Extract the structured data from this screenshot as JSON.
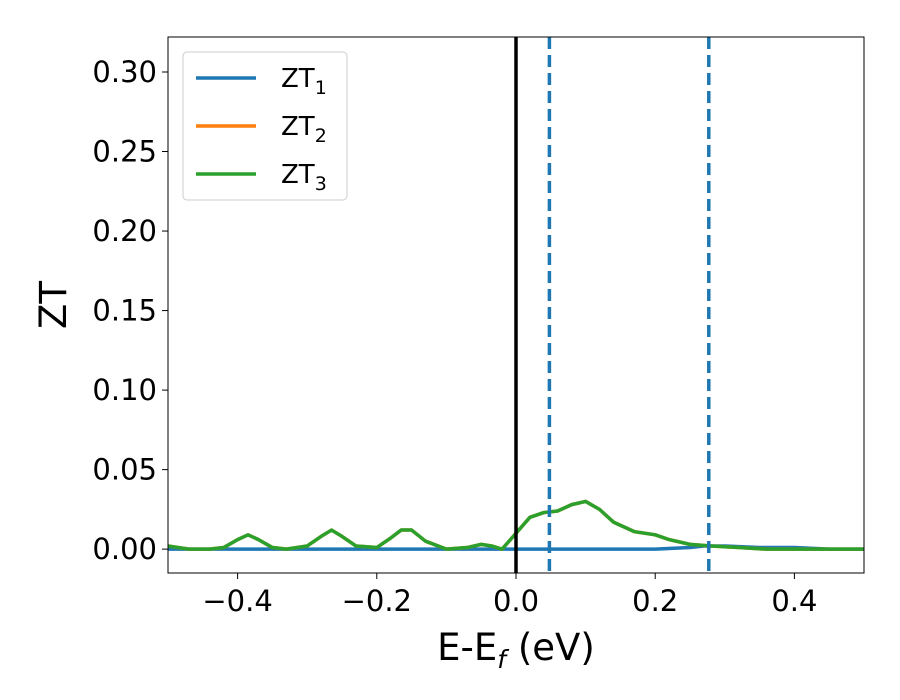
{
  "chart_data": {
    "type": "line",
    "xlabel_main": "E-E",
    "xlabel_sub": "f",
    "xlabel_unit": " (eV)",
    "ylabel": "ZT",
    "xlim": [
      -0.5,
      0.5
    ],
    "ylim": [
      -0.015,
      0.322
    ],
    "xticks": [
      -0.4,
      -0.2,
      0.0,
      0.2,
      0.4
    ],
    "xtick_labels": [
      "−0.4",
      "−0.2",
      "0.0",
      "0.2",
      "0.4"
    ],
    "yticks": [
      0.0,
      0.05,
      0.1,
      0.15,
      0.2,
      0.25,
      0.3
    ],
    "ytick_labels": [
      "0.00",
      "0.05",
      "0.10",
      "0.15",
      "0.20",
      "0.25",
      "0.30"
    ],
    "grid": false,
    "legend_position": "top-left",
    "series": [
      {
        "name": "ZT",
        "subscript": "1",
        "color": "#1f77b4",
        "x": [
          -0.5,
          -0.4,
          -0.3,
          -0.2,
          -0.1,
          0.0,
          0.05,
          0.1,
          0.15,
          0.2,
          0.25,
          0.27,
          0.3,
          0.35,
          0.4,
          0.45,
          0.5
        ],
        "y": [
          0.0,
          0.0,
          0.0,
          0.0,
          0.0,
          0.0,
          0.0,
          0.0,
          0.0,
          0.0,
          0.001,
          0.002,
          0.002,
          0.001,
          0.001,
          0.0,
          0.0
        ]
      },
      {
        "name": "ZT",
        "subscript": "2",
        "color": "#ff7f0e",
        "x": [
          -0.5,
          -0.47,
          -0.44,
          -0.42,
          -0.4,
          -0.385,
          -0.37,
          -0.35,
          -0.33,
          -0.3,
          -0.28,
          -0.265,
          -0.25,
          -0.23,
          -0.2,
          -0.18,
          -0.165,
          -0.15,
          -0.13,
          -0.1,
          -0.07,
          -0.05,
          -0.035,
          -0.02,
          0.0,
          0.02,
          0.04,
          0.06,
          0.08,
          0.1,
          0.12,
          0.14,
          0.17,
          0.2,
          0.22,
          0.25,
          0.28,
          0.32,
          0.36,
          0.4,
          0.45,
          0.5
        ],
        "y": [
          0.002,
          0.0,
          0.0,
          0.001,
          0.006,
          0.009,
          0.006,
          0.001,
          0.0,
          0.002,
          0.008,
          0.012,
          0.008,
          0.002,
          0.001,
          0.007,
          0.012,
          0.012,
          0.005,
          0.0,
          0.001,
          0.003,
          0.002,
          0.0,
          0.01,
          0.02,
          0.023,
          0.024,
          0.028,
          0.03,
          0.025,
          0.017,
          0.011,
          0.009,
          0.006,
          0.003,
          0.002,
          0.001,
          0.0,
          0.0,
          0.0,
          0.0
        ]
      },
      {
        "name": "ZT",
        "subscript": "3",
        "color": "#2ca02c",
        "x": [
          -0.5,
          -0.47,
          -0.44,
          -0.42,
          -0.4,
          -0.385,
          -0.37,
          -0.35,
          -0.33,
          -0.3,
          -0.28,
          -0.265,
          -0.25,
          -0.23,
          -0.2,
          -0.18,
          -0.165,
          -0.15,
          -0.13,
          -0.1,
          -0.07,
          -0.05,
          -0.035,
          -0.02,
          0.0,
          0.02,
          0.04,
          0.06,
          0.08,
          0.1,
          0.12,
          0.14,
          0.17,
          0.2,
          0.22,
          0.25,
          0.28,
          0.32,
          0.36,
          0.4,
          0.45,
          0.5
        ],
        "y": [
          0.002,
          0.0,
          0.0,
          0.001,
          0.006,
          0.009,
          0.006,
          0.001,
          0.0,
          0.002,
          0.008,
          0.012,
          0.008,
          0.002,
          0.001,
          0.007,
          0.012,
          0.012,
          0.005,
          0.0,
          0.001,
          0.003,
          0.002,
          0.0,
          0.01,
          0.02,
          0.023,
          0.024,
          0.028,
          0.03,
          0.025,
          0.017,
          0.011,
          0.009,
          0.006,
          0.003,
          0.002,
          0.001,
          0.0,
          0.0,
          0.0,
          0.0
        ]
      }
    ],
    "vlines": [
      {
        "x": 0.0,
        "color": "#000000",
        "style": "solid"
      },
      {
        "x": 0.048,
        "color": "#1f77b4",
        "style": "dashed"
      },
      {
        "x": 0.277,
        "color": "#1f77b4",
        "style": "dashed"
      }
    ]
  }
}
